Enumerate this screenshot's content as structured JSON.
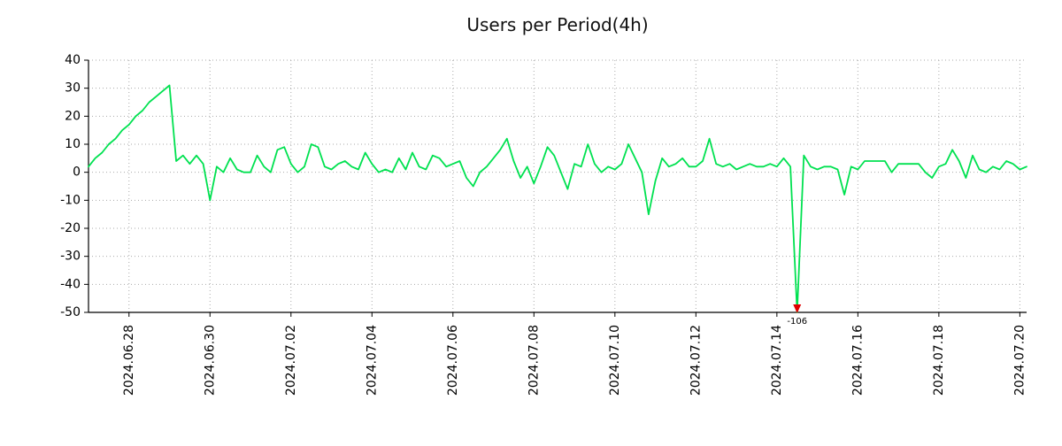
{
  "colors": {
    "line": "#00e150",
    "grid": "#aaaaaa",
    "axis": "#000000",
    "marker": "#e00000",
    "annotation": "#00b84a",
    "background": "#ffffff",
    "text": "#111111"
  },
  "chart_data": {
    "type": "line",
    "title": "Users per Period(4h)",
    "xlabel": "",
    "ylabel": "",
    "ylim": [
      -50,
      40
    ],
    "y_ticks": [
      40,
      30,
      20,
      10,
      0,
      -10,
      -20,
      -30,
      -40,
      -50
    ],
    "x_ticks": [
      {
        "t": 1,
        "label": "2024.06.28"
      },
      {
        "t": 3,
        "label": "2024.06.30"
      },
      {
        "t": 5,
        "label": "2024.07.02"
      },
      {
        "t": 7,
        "label": "2024.07.04"
      },
      {
        "t": 9,
        "label": "2024.07.06"
      },
      {
        "t": 11,
        "label": "2024.07.08"
      },
      {
        "t": 13,
        "label": "2024.07.10"
      },
      {
        "t": 15,
        "label": "2024.07.12"
      },
      {
        "t": 17,
        "label": "2024.07.14"
      },
      {
        "t": 19,
        "label": "2024.07.16"
      },
      {
        "t": 21,
        "label": "2024.07.18"
      },
      {
        "t": 23,
        "label": "2024.07.20"
      }
    ],
    "x_range_days": [
      0,
      23.1666667
    ],
    "sample_interval_hours": 4,
    "grid": true,
    "legend": "none",
    "clip_min": -50,
    "annotation": {
      "text": "-106",
      "value": -106,
      "t": 17.5,
      "marker": "red-down-triangle"
    },
    "series": [
      {
        "name": "users",
        "color": "#00e150",
        "start_day": 0,
        "step_days": 0.1666667,
        "values": [
          2,
          5,
          7,
          10,
          12,
          15,
          17,
          20,
          22,
          25,
          27,
          29,
          31,
          4,
          6,
          3,
          6,
          3,
          -10,
          2,
          0,
          5,
          1,
          0,
          0,
          6,
          2,
          0,
          8,
          9,
          3,
          0,
          2,
          10,
          9,
          2,
          1,
          3,
          4,
          2,
          1,
          7,
          3,
          0,
          1,
          0,
          5,
          1,
          7,
          2,
          1,
          6,
          5,
          2,
          3,
          4,
          -2,
          -5,
          0,
          2,
          5,
          8,
          12,
          4,
          -2,
          2,
          -4,
          2,
          9,
          6,
          0,
          -6,
          3,
          2,
          10,
          3,
          0,
          2,
          1,
          3,
          10,
          5,
          0,
          -15,
          -3,
          5,
          2,
          3,
          5,
          2,
          2,
          4,
          12,
          3,
          2,
          3,
          1,
          2,
          3,
          2,
          2,
          3,
          2,
          5,
          2,
          -106,
          6,
          2,
          1,
          2,
          2,
          1,
          -8,
          2,
          1,
          4,
          4,
          4,
          4,
          0,
          3,
          3,
          3,
          3,
          0,
          -2,
          2,
          3,
          8,
          4,
          -2,
          6,
          1,
          0,
          2,
          1,
          4,
          3,
          1,
          2
        ]
      }
    ]
  }
}
